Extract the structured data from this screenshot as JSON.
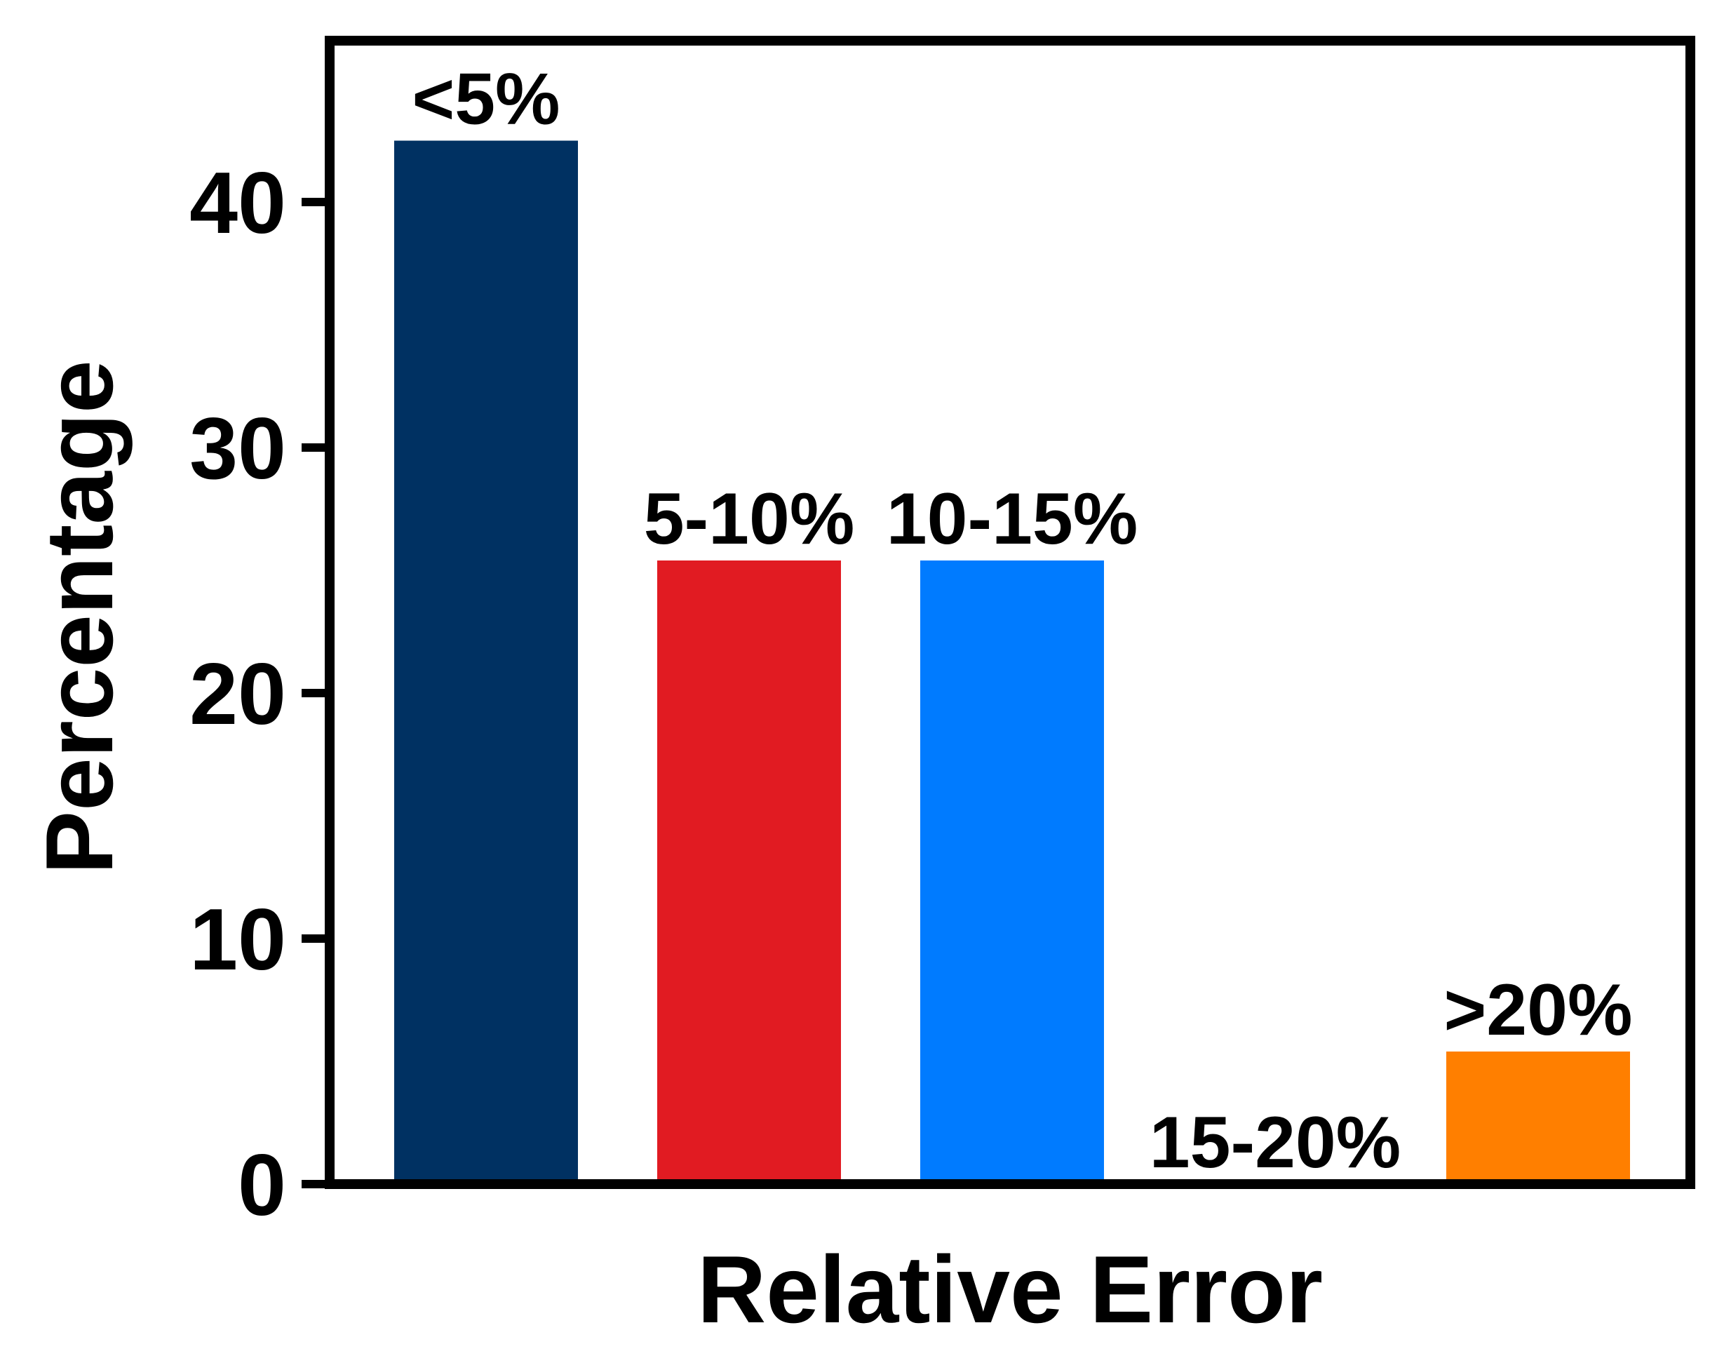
{
  "chart_data": {
    "type": "bar",
    "title": "",
    "xlabel": "Relative Error",
    "ylabel": "Percentage",
    "categories": [
      "<5%",
      "5-10%",
      "10-15%",
      "15-20%",
      ">20%"
    ],
    "values": [
      42.5,
      25.4,
      25.4,
      0,
      5.4
    ],
    "colors": [
      "#003162",
      "#e11b22",
      "#007bff",
      "#000000",
      "#ff7f00"
    ],
    "ylim": [
      0,
      47
    ],
    "yticks": [
      0,
      10,
      20,
      30,
      40
    ],
    "ytick_labels": [
      "0",
      "10",
      "20",
      "30",
      "40"
    ],
    "grid": false,
    "legend": false
  }
}
